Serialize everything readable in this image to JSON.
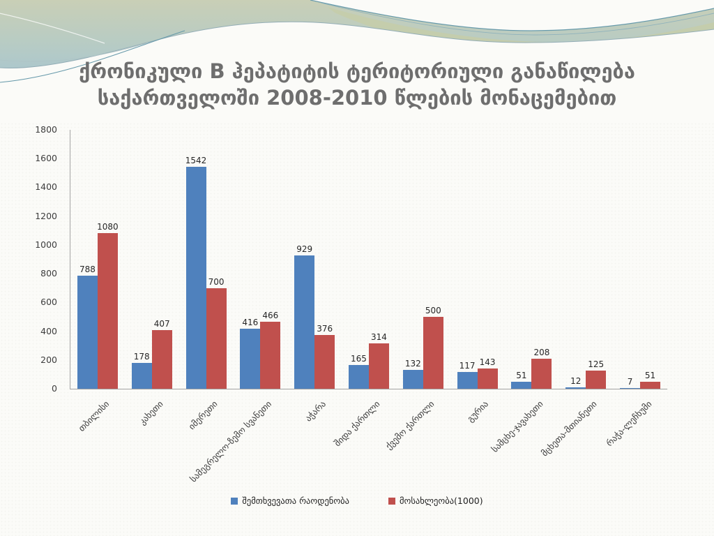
{
  "chart_data": {
    "type": "bar",
    "title": "ქრონიკული B ჰეპატიტის ტერიტორიული განაწილება საქართველოში 2008-2010 წლების მონაცემებით",
    "categories": [
      "თბილისი",
      "კახეთი",
      "იმერეთი",
      "სამეგრელო-ზემო სვანეთი",
      "აჭარა",
      "შიდა ქართლი",
      "ქვემო ქართლი",
      "გურია",
      "სამცხე-ჯავახეთი",
      "მცხეთა-მთიანეთი",
      "რაჭა-ლეჩხუმი"
    ],
    "series": [
      {
        "name": "შემთხვევათა რაოდენობა",
        "color": "#4f81bd",
        "values": [
          788,
          178,
          1542,
          416,
          929,
          165,
          132,
          117,
          51,
          12,
          7
        ]
      },
      {
        "name": "მოსახლეობა(1000)",
        "color": "#c0504d",
        "values": [
          1080,
          407,
          700,
          466,
          376,
          314,
          500,
          143,
          208,
          125,
          51
        ]
      }
    ],
    "xlabel": "",
    "ylabel": "",
    "ylim": [
      0,
      1800
    ],
    "y_ticks": [
      0,
      200,
      400,
      600,
      800,
      1000,
      1200,
      1400,
      1600,
      1800
    ],
    "grid": false,
    "bar_value_labels": true,
    "legend_position": "bottom"
  },
  "theme": {
    "title_color": "#6e6e6e",
    "axis_color": "#a3a3a3",
    "accent_blue": "#4f81bd",
    "accent_red": "#c0504d"
  }
}
